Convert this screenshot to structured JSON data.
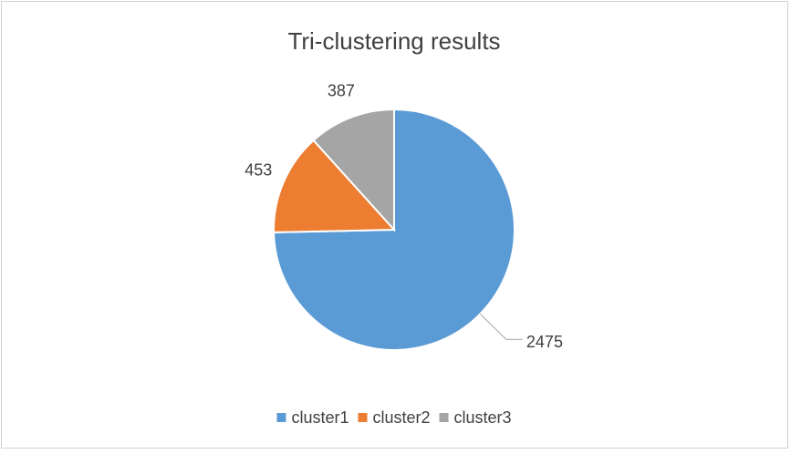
{
  "chart_data": {
    "type": "pie",
    "title": "Tri-clustering results",
    "categories": [
      "cluster1",
      "cluster2",
      "cluster3"
    ],
    "values": [
      2475,
      453,
      387
    ],
    "colors": [
      "#5b9bd5",
      "#ed7d31",
      "#a5a5a5"
    ],
    "legend": "bottom"
  }
}
